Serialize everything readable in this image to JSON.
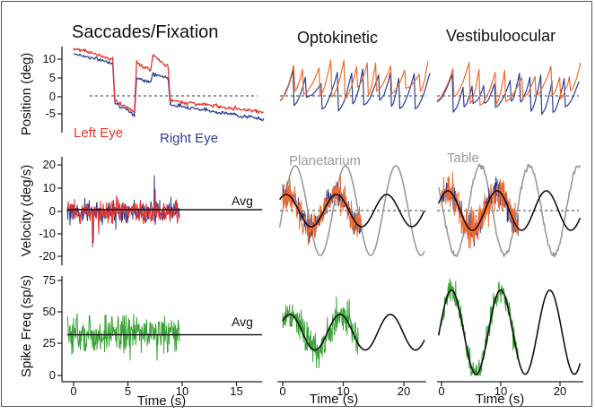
{
  "colors": {
    "left_eye": "#e8352e",
    "right_eye": "#2b3f94",
    "orange": "#ee6a2e",
    "green": "#3aa336",
    "gray": "#9a9a9a",
    "black": "#111111"
  },
  "chart_data": [
    {
      "type": "line",
      "title": "Saccades/Fixation",
      "panel": "position",
      "ylabel": "Position (deg)",
      "ylim": [
        -8,
        14
      ],
      "xlim": [
        -1,
        18
      ],
      "yticks": [
        "-5",
        "0",
        "5",
        "10"
      ],
      "series": [
        {
          "name": "Left Eye",
          "color": "#e8352e",
          "x": [
            0,
            3.6,
            3.8,
            5.6,
            5.8,
            7.1,
            7.3,
            8.7,
            8.9,
            17.5
          ],
          "y": [
            13,
            10,
            -1,
            -4,
            9,
            7,
            11,
            8,
            -1,
            -4
          ]
        },
        {
          "name": "Right Eye",
          "color": "#2b3f94",
          "x": [
            0,
            3.6,
            3.8,
            5.6,
            5.8,
            7.1,
            7.3,
            8.7,
            8.9,
            17.5
          ],
          "y": [
            11.5,
            9,
            -1.5,
            -5,
            5,
            4,
            6,
            5,
            -2,
            -6
          ]
        }
      ],
      "labels": {
        "left": "Left Eye",
        "right": "Right Eye"
      }
    },
    {
      "type": "line",
      "title": "Optokinetic",
      "panel": "position"
    },
    {
      "type": "line",
      "title": "Vestibuloocular",
      "panel": "position"
    },
    {
      "type": "line",
      "panel": "velocity",
      "ylabel": "Velocity (deg/s)",
      "ylim": [
        -23,
        23
      ],
      "xlim": [
        -1,
        18
      ],
      "yticks": [
        "-20",
        "-10",
        "0",
        "10",
        "20"
      ],
      "annotation": "Avg"
    },
    {
      "type": "line",
      "panel": "velocity",
      "annotation": "Planetarium",
      "xlim": [
        -1,
        23
      ],
      "ylim": [
        -23,
        23
      ]
    },
    {
      "type": "line",
      "panel": "velocity",
      "annotation": "Table",
      "xlim": [
        -1,
        23
      ],
      "ylim": [
        -23,
        23
      ]
    },
    {
      "type": "line",
      "panel": "spike",
      "ylabel": "Spike Freq (sp/s)",
      "xlabel": "Time (s)",
      "ylim": [
        0,
        77
      ],
      "xlim": [
        -1,
        18
      ],
      "yticks": [
        "0",
        "25",
        "50",
        "75"
      ],
      "xticks": [
        "0",
        "5",
        "10",
        "15"
      ],
      "annotation": "Avg"
    },
    {
      "type": "line",
      "panel": "spike",
      "xlabel": "Time (s)",
      "ylim": [
        0,
        77
      ],
      "xlim": [
        -1,
        23
      ],
      "xticks": [
        "0",
        "10",
        "20"
      ]
    },
    {
      "type": "line",
      "panel": "spike",
      "xlabel": "Time (s)",
      "ylim": [
        0,
        77
      ],
      "xlim": [
        -1,
        23
      ],
      "xticks": [
        "0",
        "10",
        "20"
      ]
    }
  ]
}
